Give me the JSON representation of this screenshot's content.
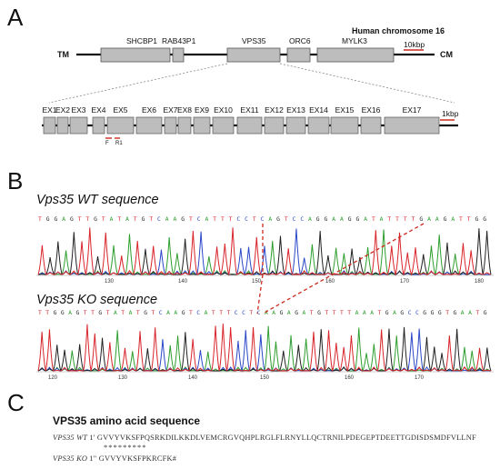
{
  "panels": {
    "a": "A",
    "b": "B",
    "c": "C"
  },
  "panel_a": {
    "chromosome_label": "Human chromosome 16",
    "left_end": "TM",
    "right_end": "CM",
    "scale_chrom": "10kbp",
    "scale_gene": "1kbp",
    "genes": [
      "SHCBP1",
      "RAB43P1",
      "VPS35",
      "ORC6",
      "MYLK3"
    ],
    "exons": [
      "EX1",
      "EX2",
      "EX3",
      "EX4",
      "EX5",
      "EX6",
      "EX7",
      "EX8",
      "EX9",
      "EX10",
      "EX11",
      "EX12",
      "EX13",
      "EX14",
      "EX15",
      "EX16",
      "EX17"
    ],
    "primers": [
      "F",
      "R1"
    ]
  },
  "panel_b": {
    "wt_title": "Vps35 WT sequence",
    "ko_title": "Vps35 KO sequence",
    "wt_seq": "TGGAGTTGTATATGTCAAGTCATTTCCTCAGTCCAGGAAGGATATTTTGAAGATTGG",
    "ko_seq": "TTGGAGTTGTATATGTCAAGTCATTTCCTCAAGAGATGTTTTAAATGAGCCGGGTGAATG",
    "wt_ticks": [
      "130",
      "140",
      "150",
      "160",
      "170",
      "180"
    ],
    "ko_ticks": [
      "120",
      "130",
      "140",
      "150",
      "160",
      "170"
    ]
  },
  "panel_c": {
    "title": "VPS35 amino acid sequence",
    "wt_label": "VPS35 WT",
    "wt_pos": "1'",
    "wt_seq": "GVVYVKSFPQSRKDILKKDLVEMCRGVQHPLRGLFLRNYLLQCTRNILPDEGEPTDEETTGDISDSMDFVLLNF",
    "stars": "*********",
    "ko_label": "VPS35 KO",
    "ko_pos": "1\"",
    "ko_seq": "GVVYVKSFPKRCFK#"
  },
  "colors": {
    "base_A": "#2e9e2e",
    "base_C": "#2a47c8",
    "base_G": "#222222",
    "base_T": "#d8242a",
    "cut": "#cc2a1e",
    "box": "#bdbdbd"
  }
}
